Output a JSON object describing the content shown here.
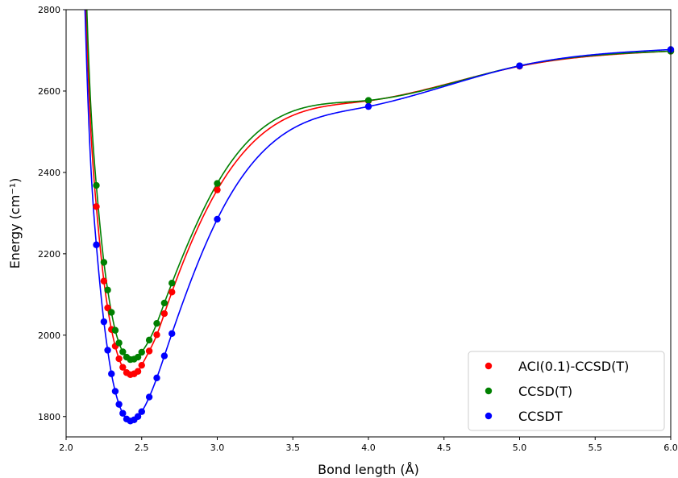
{
  "chart_data": {
    "type": "scatter",
    "xlabel": "Bond length (Å)",
    "ylabel": "Energy (cm⁻¹)",
    "xlim": [
      2.0,
      6.0
    ],
    "ylim": [
      1750,
      2800
    ],
    "xticks": [
      2.0,
      2.5,
      3.0,
      3.5,
      4.0,
      4.5,
      5.0,
      5.5,
      6.0
    ],
    "xtick_labels": [
      "2.0",
      "2.5",
      "3.0",
      "3.5",
      "4.0",
      "4.5",
      "5.0",
      "5.5",
      "6.0"
    ],
    "yticks": [
      1800,
      2000,
      2200,
      2400,
      2600,
      2800
    ],
    "ytick_labels": [
      "1800",
      "2000",
      "2200",
      "2400",
      "2600",
      "2800"
    ],
    "grid": false,
    "legend": "bottom-right",
    "series": [
      {
        "name": "ACI(0.1)-CCSD(T)",
        "color": "#ff0000",
        "x": [
          2.2,
          2.25,
          2.275,
          2.3,
          2.325,
          2.35,
          2.375,
          2.4,
          2.425,
          2.45,
          2.475,
          2.5,
          2.55,
          2.6,
          2.65,
          2.7,
          3.0,
          4.0,
          5.0,
          6.0
        ],
        "y": [
          2316,
          2133,
          2067,
          2014,
          1973,
          1942,
          1921,
          1908,
          1903,
          1905,
          1911,
          1926,
          1961,
          2001,
          2053,
          2106,
          2357,
          2576,
          2661,
          2698
        ]
      },
      {
        "name": "CCSD(T)",
        "color": "#008000",
        "x": [
          2.2,
          2.25,
          2.275,
          2.3,
          2.325,
          2.35,
          2.375,
          2.4,
          2.425,
          2.45,
          2.475,
          2.5,
          2.55,
          2.6,
          2.65,
          2.7,
          3.0,
          4.0,
          5.0,
          6.0
        ],
        "y": [
          2368,
          2179,
          2111,
          2056,
          2012,
          1981,
          1959,
          1946,
          1940,
          1941,
          1946,
          1958,
          1988,
          2029,
          2079,
          2128,
          2373,
          2577,
          2662,
          2698
        ]
      },
      {
        "name": "CCSDT",
        "color": "#0000ff",
        "x": [
          2.2,
          2.25,
          2.275,
          2.3,
          2.325,
          2.35,
          2.375,
          2.4,
          2.425,
          2.45,
          2.475,
          2.5,
          2.55,
          2.6,
          2.65,
          2.7,
          3.0,
          4.0,
          5.0,
          6.0
        ],
        "y": [
          2222,
          2033,
          1963,
          1905,
          1862,
          1830,
          1808,
          1794,
          1789,
          1792,
          1800,
          1812,
          1848,
          1895,
          1949,
          2004,
          2285,
          2562,
          2662,
          2702
        ]
      }
    ]
  }
}
